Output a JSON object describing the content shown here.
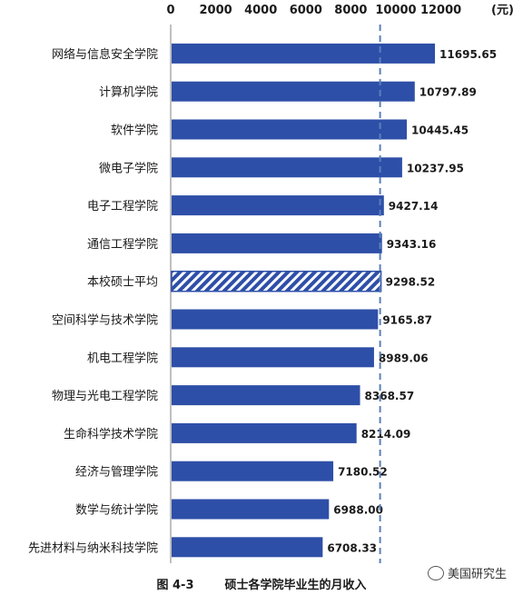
{
  "chart_data": {
    "type": "bar",
    "orientation": "horizontal",
    "unit_label": "(元)",
    "xlim": [
      0,
      12000
    ],
    "xticks": [
      "0",
      "2000",
      "4000",
      "6000",
      "8000",
      "10000",
      "12000"
    ],
    "categories": [
      "网络与信息安全学院",
      "计算机学院",
      "软件学院",
      "微电子学院",
      "电子工程学院",
      "通信工程学院",
      "本校硕士平均",
      "空间科学与技术学院",
      "机电工程学院",
      "物理与光电工程学院",
      "生命科学技术学院",
      "经济与管理学院",
      "数学与统计学院",
      "先进材料与纳米科技学院"
    ],
    "values": [
      11695.65,
      10797.89,
      10445.45,
      10237.95,
      9427.14,
      9343.16,
      9298.52,
      9165.87,
      8989.06,
      8368.57,
      8214.09,
      7180.52,
      6988.0,
      6708.33
    ],
    "value_labels": [
      "11695.65",
      "10797.89",
      "10445.45",
      "10237.95",
      "9427.14",
      "9343.16",
      "9298.52",
      "9165.87",
      "8989.06",
      "8368.57",
      "8214.09",
      "7180.52",
      "6988.00",
      "6708.33"
    ],
    "highlight_category": "本校硕士平均",
    "reference_line": 9298.52,
    "colors": {
      "bar": "#2e4fa8",
      "highlight": "#2e4fa8",
      "reference_line": "#5b7fb8"
    },
    "grid": false
  },
  "caption": {
    "figure_number": "图 4-3",
    "title": "硕士各学院毕业生的月收入"
  },
  "watermark": {
    "text": "美国研究生",
    "icon": "wechat-icon"
  }
}
